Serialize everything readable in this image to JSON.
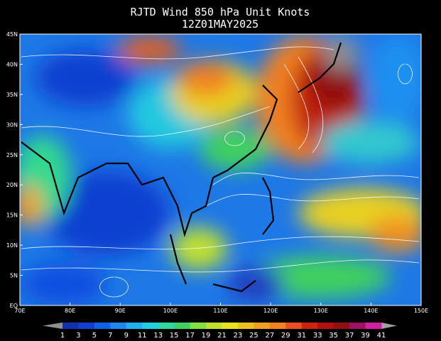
{
  "header": {
    "title": "RJTD Wind 850 hPa Unit Knots",
    "subtitle": "12Z01MAY2025"
  },
  "map": {
    "lat_ticks": [
      "45N",
      "40N",
      "35N",
      "30N",
      "25N",
      "20N",
      "15N",
      "10N",
      "5N",
      "EQ"
    ],
    "lon_ticks": [
      "70E",
      "80E",
      "90E",
      "100E",
      "110E",
      "120E",
      "130E",
      "140E",
      "150E"
    ]
  },
  "colorbar": {
    "labels": [
      1,
      3,
      5,
      7,
      9,
      11,
      13,
      15,
      17,
      19,
      21,
      23,
      25,
      27,
      29,
      31,
      33,
      35,
      37,
      39,
      41
    ]
  }
}
